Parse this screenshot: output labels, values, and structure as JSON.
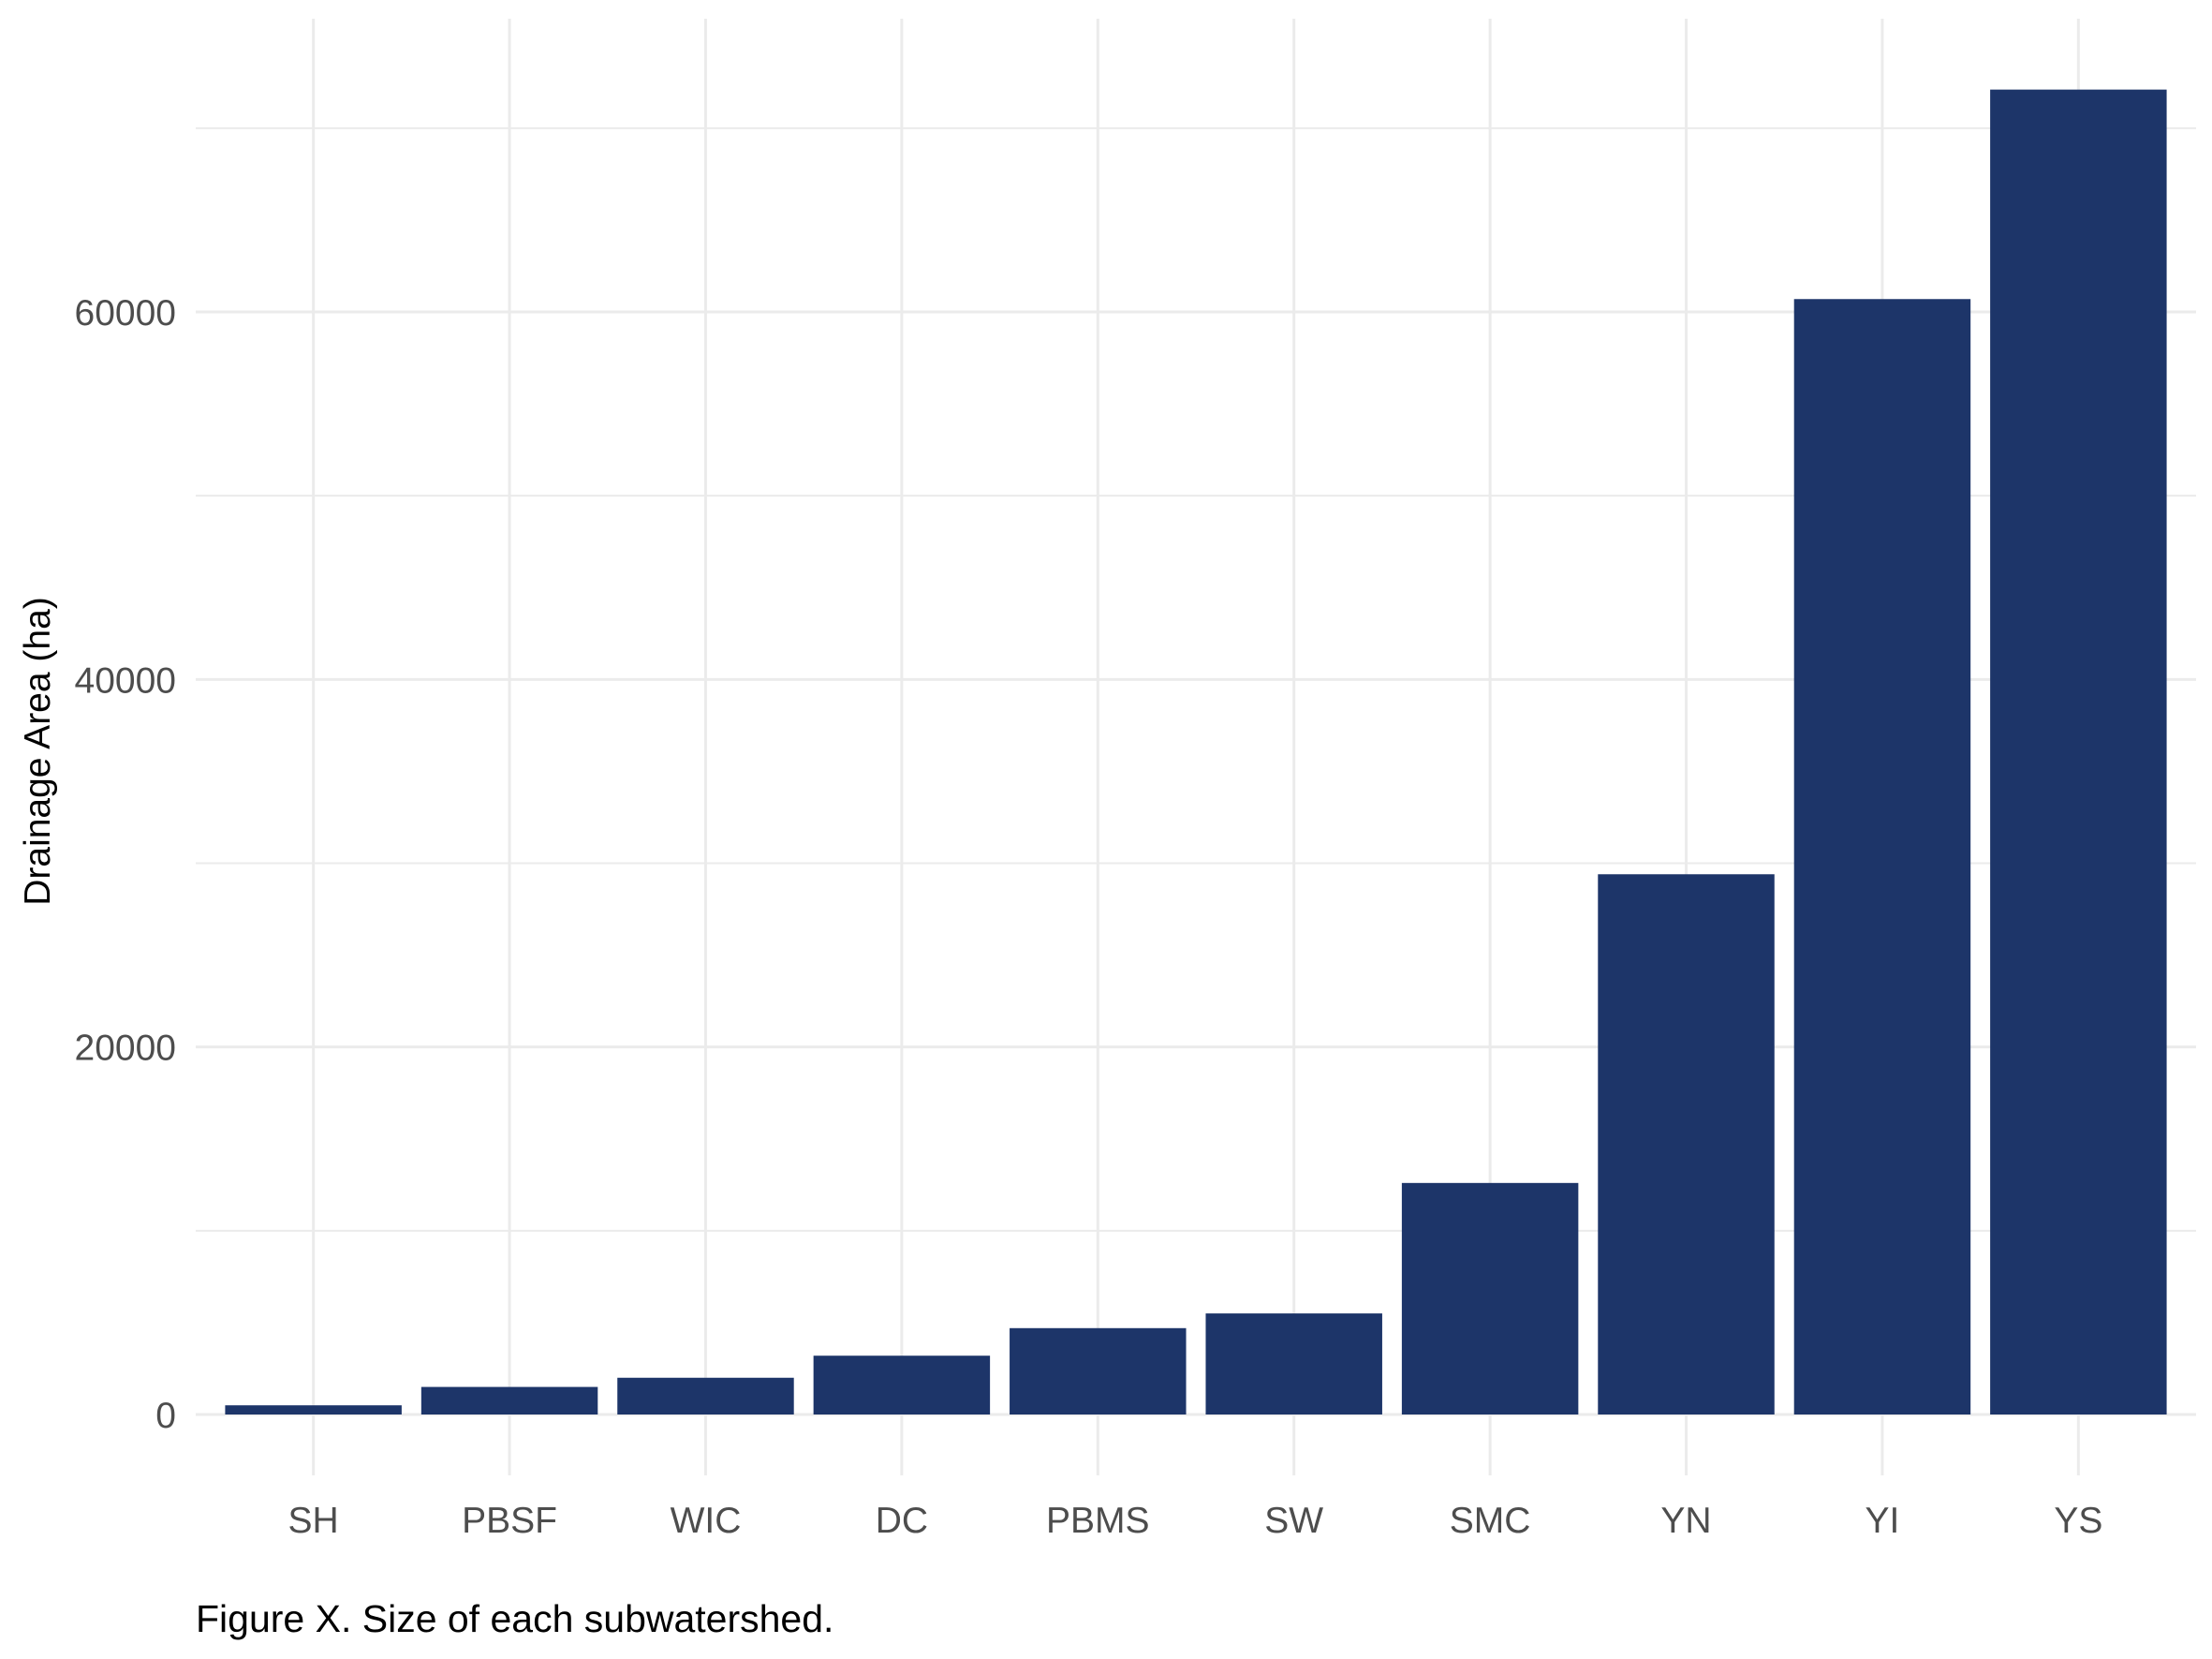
{
  "chart_data": {
    "type": "bar",
    "categories": [
      "SH",
      "PBSF",
      "WIC",
      "DC",
      "PBMS",
      "SW",
      "SMC",
      "YN",
      "YI",
      "YS"
    ],
    "values": [
      500,
      1500,
      2000,
      3200,
      4700,
      5500,
      12600,
      29400,
      60700,
      72100
    ],
    "title": "",
    "xlabel": "",
    "ylabel": "Drainage Area (ha)",
    "ylim": [
      0,
      76000
    ],
    "yticks": [
      0,
      20000,
      40000,
      60000
    ],
    "ytick_labels": [
      "0",
      "20000",
      "40000",
      "60000"
    ],
    "grid": true,
    "legend": "none",
    "bar_color": "#1d3569",
    "grid_color": "#ebebeb"
  },
  "caption": "Figure X. Size of each subwatershed."
}
